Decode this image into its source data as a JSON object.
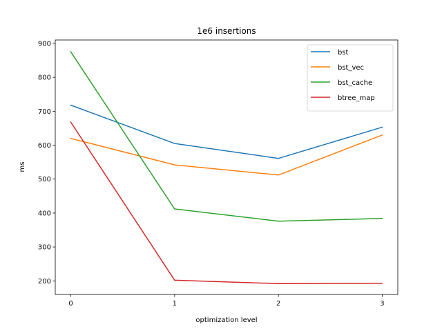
{
  "chart_data": {
    "type": "line",
    "title": "1e6 insertions",
    "xlabel": "optimization level",
    "ylabel": "ms",
    "x": [
      0,
      1,
      2,
      3
    ],
    "x_ticks": [
      "0",
      "1",
      "2",
      "3"
    ],
    "y_ticks": [
      "200",
      "300",
      "400",
      "500",
      "600",
      "700",
      "800",
      "900"
    ],
    "xlim": [
      -0.15,
      3.15
    ],
    "ylim": [
      160,
      910
    ],
    "grid": false,
    "legend_position": "top-right",
    "series": [
      {
        "name": "bst",
        "color": "#1f77b4",
        "values": [
          718,
          605,
          561,
          653
        ]
      },
      {
        "name": "bst_vec",
        "color": "#ff7f0e",
        "values": [
          620,
          542,
          512,
          630
        ]
      },
      {
        "name": "bst_cache",
        "color": "#2ca02c",
        "values": [
          875,
          412,
          376,
          384
        ]
      },
      {
        "name": "btree_map",
        "color": "#d62728",
        "values": [
          668,
          202,
          192,
          193
        ]
      }
    ]
  }
}
